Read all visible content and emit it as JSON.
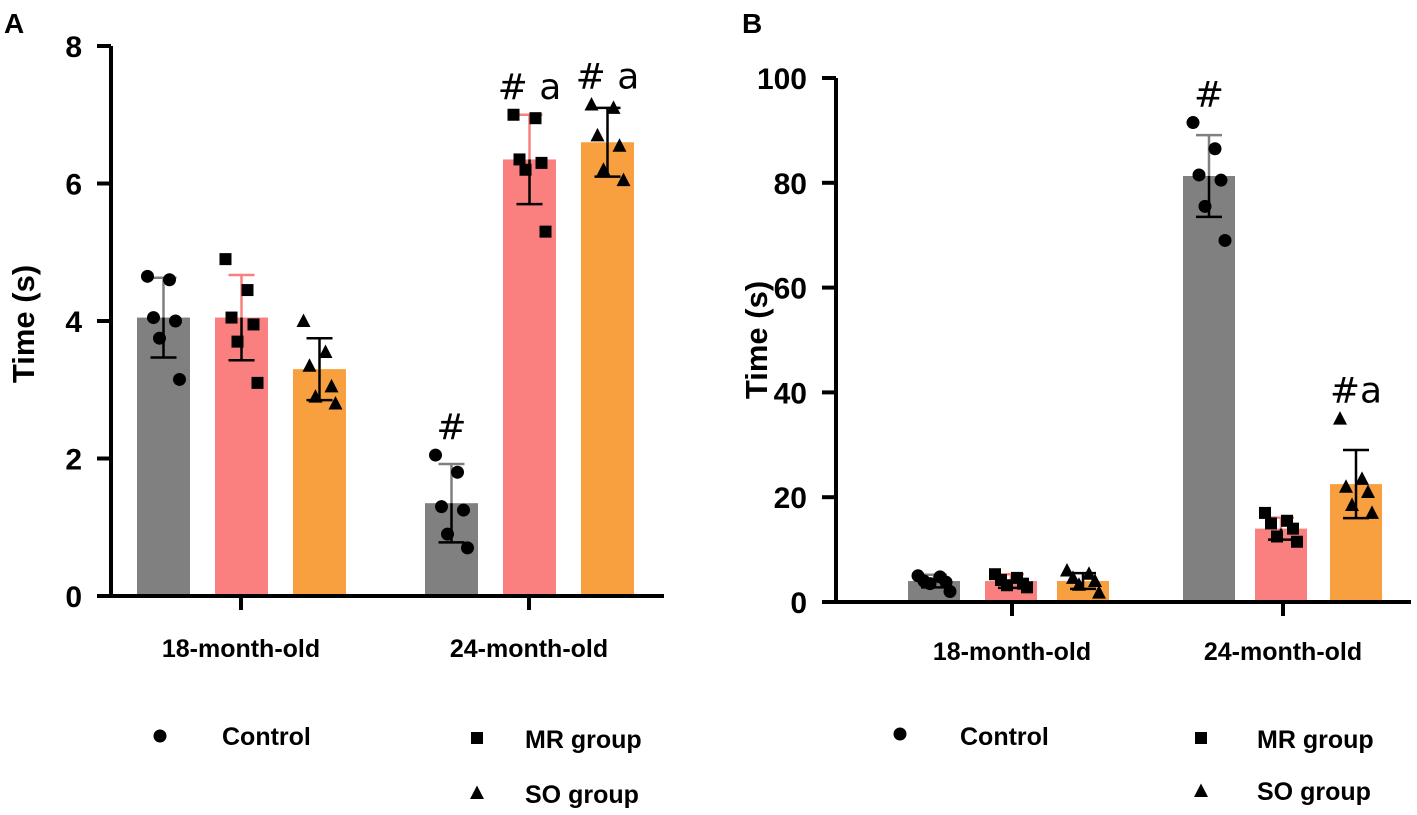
{
  "chart_data": [
    {
      "panel": "A",
      "type": "bar",
      "title": "",
      "xlabel": "",
      "ylabel": "Time (s)",
      "ylim": [
        0,
        8
      ],
      "yticks": [
        0,
        2,
        4,
        6,
        8
      ],
      "categories": [
        "18-month-old",
        "24-month-old"
      ],
      "series": [
        {
          "name": "Control",
          "color": "#808080",
          "marker": "circle",
          "values": [
            4.05,
            1.35
          ],
          "errors": [
            0.58,
            0.57
          ],
          "points": [
            [
              4.65,
              4.6,
              4.05,
              4.0,
              3.75,
              3.15
            ],
            [
              2.05,
              1.8,
              1.3,
              1.25,
              0.9,
              0.7
            ]
          ],
          "annotations": [
            "",
            "#"
          ]
        },
        {
          "name": "MR group",
          "color": "#FA7F7F",
          "marker": "square",
          "values": [
            4.05,
            6.35
          ],
          "errors": [
            0.62,
            0.65
          ],
          "points": [
            [
              4.9,
              4.45,
              4.05,
              3.95,
              3.7,
              3.1
            ],
            [
              7.0,
              6.95,
              6.35,
              6.3,
              6.2,
              5.3
            ]
          ],
          "annotations": [
            "",
            "# a"
          ]
        },
        {
          "name": "SO group",
          "color": "#F8A03F",
          "marker": "triangle",
          "values": [
            3.3,
            6.6
          ],
          "errors": [
            0.45,
            0.5
          ],
          "points": [
            [
              4.0,
              3.55,
              3.35,
              3.05,
              2.9,
              2.8
            ],
            [
              7.15,
              7.1,
              6.7,
              6.55,
              6.2,
              6.05
            ]
          ],
          "annotations": [
            "",
            "# a"
          ]
        }
      ],
      "legend": [
        "Control",
        "MR group",
        "SO group"
      ]
    },
    {
      "panel": "B",
      "type": "bar",
      "title": "",
      "xlabel": "",
      "ylabel": "Time (s)",
      "ylim": [
        0,
        100
      ],
      "yticks": [
        0,
        20,
        40,
        60,
        80,
        100
      ],
      "categories": [
        "18-month-old",
        "24-month-old"
      ],
      "series": [
        {
          "name": "Control",
          "color": "#808080",
          "marker": "circle",
          "values": [
            4,
            81.3
          ],
          "errors": [
            1.2,
            7.8
          ],
          "points": [
            [
              5.0,
              4.8,
              4.0,
              3.8,
              3.5,
              2.0
            ],
            [
              91.5,
              86.5,
              81.5,
              80.5,
              75.5,
              69.0
            ]
          ],
          "annotations": [
            "",
            "#"
          ]
        },
        {
          "name": "MR group",
          "color": "#FA7F7F",
          "marker": "square",
          "values": [
            4,
            14
          ],
          "errors": [
            1.3,
            2.1
          ],
          "points": [
            [
              5.3,
              4.6,
              4.2,
              3.5,
              3.2,
              2.8
            ],
            [
              17.0,
              15.5,
              15.0,
              14.0,
              12.5,
              11.5
            ]
          ],
          "annotations": [
            "",
            ""
          ]
        },
        {
          "name": "SO group",
          "color": "#F8A03F",
          "marker": "triangle",
          "values": [
            4,
            22.5
          ],
          "errors": [
            1.5,
            6.5
          ],
          "points": [
            [
              6.0,
              5.4,
              4.6,
              4.0,
              3.3,
              1.8
            ],
            [
              35.0,
              23.5,
              22.0,
              21.0,
              18.5,
              17.0
            ]
          ],
          "annotations": [
            "",
            "#a"
          ]
        }
      ],
      "legend": [
        "Control",
        "MR group",
        "SO group"
      ]
    }
  ]
}
